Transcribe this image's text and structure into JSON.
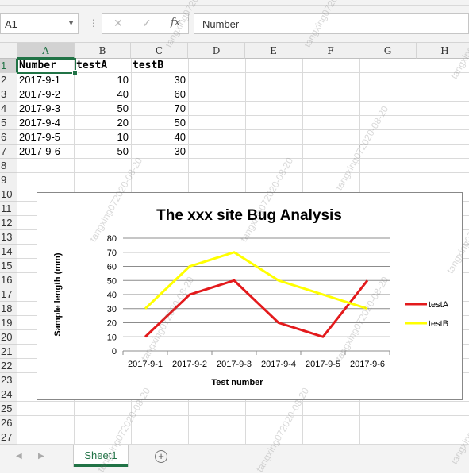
{
  "name_box": {
    "value": "A1"
  },
  "formula_bar": {
    "content": "Number",
    "fx_label": "fx",
    "cancel_glyph": "✕",
    "enter_glyph": "✓"
  },
  "columns": [
    "A",
    "B",
    "C",
    "D",
    "E",
    "F",
    "G",
    "H"
  ],
  "rows": [
    "1",
    "2",
    "3",
    "4",
    "5",
    "6",
    "7",
    "8",
    "9",
    "10",
    "11",
    "12",
    "13",
    "14",
    "15",
    "16",
    "17",
    "18",
    "19",
    "20",
    "21",
    "22",
    "23",
    "24",
    "25",
    "26",
    "27"
  ],
  "cells": {
    "header": [
      "Number",
      "testA",
      "testB"
    ],
    "data": [
      [
        "2017-9-1",
        "10",
        "30"
      ],
      [
        "2017-9-2",
        "40",
        "60"
      ],
      [
        "2017-9-3",
        "50",
        "70"
      ],
      [
        "2017-9-4",
        "20",
        "50"
      ],
      [
        "2017-9-5",
        "10",
        "40"
      ],
      [
        "2017-9-6",
        "50",
        "30"
      ]
    ]
  },
  "chart_data": {
    "type": "line",
    "title": "The xxx site Bug Analysis",
    "xlabel": "Test number",
    "ylabel": "Sample length (mm)",
    "categories": [
      "2017-9-1",
      "2017-9-2",
      "2017-9-3",
      "2017-9-4",
      "2017-9-5",
      "2017-9-6"
    ],
    "series": [
      {
        "name": "testA",
        "values": [
          10,
          40,
          50,
          20,
          10,
          50
        ],
        "color": "#e31a1c"
      },
      {
        "name": "testB",
        "values": [
          30,
          60,
          70,
          50,
          40,
          30
        ],
        "color": "#ffff00"
      }
    ],
    "ylim": [
      0,
      80
    ],
    "yticks": [
      0,
      10,
      20,
      30,
      40,
      50,
      60,
      70,
      80
    ],
    "grid": true,
    "legend": "right"
  },
  "sheet_tabs": [
    {
      "label": "Sheet1",
      "active": true
    }
  ],
  "add_sheet_label": "+",
  "watermark": "tangxing072020-08-20",
  "colors": {
    "excel_green": "#217346"
  }
}
